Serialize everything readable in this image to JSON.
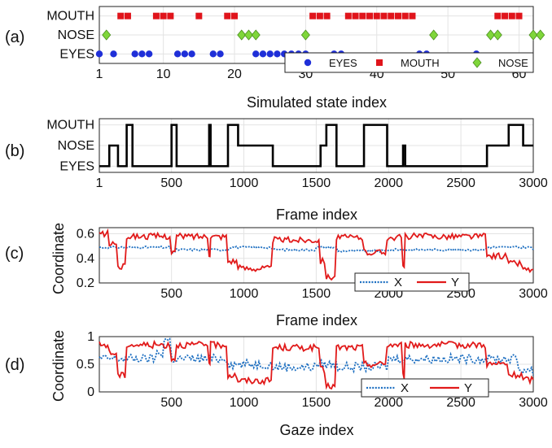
{
  "chart_data": [
    {
      "panel": "(a)",
      "type": "scatter",
      "xlabel": "Simulated state index",
      "xlim": [
        1,
        62
      ],
      "xticks": [
        1,
        10,
        20,
        30,
        40,
        50,
        60
      ],
      "ycategories": [
        "EYES",
        "NOSE",
        "MOUTH"
      ],
      "grid": true,
      "legend_position": "bottom-right",
      "series": [
        {
          "name": "EYES",
          "color": "#1f2fd8",
          "marker": "circle",
          "x": [
            1,
            3,
            6,
            7,
            8,
            12,
            13,
            14,
            17,
            18,
            23,
            24,
            25,
            26,
            27,
            28,
            29,
            30,
            34,
            35,
            46,
            47,
            54
          ]
        },
        {
          "name": "MOUTH",
          "color": "#e0141b",
          "marker": "square",
          "x": [
            4,
            5,
            9,
            10,
            11,
            15,
            19,
            20,
            31,
            32,
            33,
            36,
            37,
            38,
            39,
            40,
            41,
            42,
            43,
            44,
            45,
            57,
            58,
            59,
            60
          ]
        },
        {
          "name": "NOSE",
          "color": "#7fd63a",
          "marker": "diamond",
          "x": [
            2,
            21,
            22,
            23,
            30,
            48,
            56,
            57,
            62,
            63
          ]
        }
      ]
    },
    {
      "panel": "(b)",
      "type": "line",
      "xlabel": "Frame index",
      "xlim": [
        1,
        3000
      ],
      "xticks": [
        1,
        500,
        1000,
        1500,
        2000,
        2500,
        3000
      ],
      "ycategories": [
        "EYES",
        "NOSE",
        "MOUTH"
      ],
      "grid": true,
      "series": [
        {
          "name": "",
          "color": "#000000",
          "steps": [
            [
              1,
              0
            ],
            [
              70,
              1
            ],
            [
              130,
              0
            ],
            [
              190,
              2
            ],
            [
              230,
              0
            ],
            [
              500,
              2
            ],
            [
              535,
              0
            ],
            [
              760,
              2
            ],
            [
              770,
              0
            ],
            [
              890,
              2
            ],
            [
              960,
              1
            ],
            [
              1200,
              0
            ],
            [
              1530,
              1
            ],
            [
              1570,
              2
            ],
            [
              1640,
              0
            ],
            [
              1830,
              2
            ],
            [
              1990,
              0
            ],
            [
              2100,
              1
            ],
            [
              2115,
              0
            ],
            [
              2270,
              0
            ],
            [
              2680,
              1
            ],
            [
              2830,
              2
            ],
            [
              2930,
              1
            ],
            [
              3000,
              1
            ]
          ]
        }
      ]
    },
    {
      "panel": "(c)",
      "type": "line",
      "xlabel": "Frame index",
      "ylabel": "Coordinate",
      "xlim": [
        1,
        3000
      ],
      "ylim": [
        0.2,
        0.65
      ],
      "xticks": [
        500,
        1000,
        1500,
        2000,
        2500,
        3000
      ],
      "yticks": [
        0.2,
        0.4,
        0.6
      ],
      "grid": true,
      "legend_position": "bottom-right",
      "series": [
        {
          "name": "X",
          "color": "#1d6fc1",
          "style": "dotted",
          "segments": [
            [
              1,
              0.49
            ],
            [
              500,
              0.45
            ],
            [
              535,
              0.47
            ],
            [
              900,
              0.49
            ],
            [
              1200,
              0.47
            ],
            [
              1500,
              0.49
            ],
            [
              1650,
              0.46
            ],
            [
              2000,
              0.47
            ],
            [
              2680,
              0.49
            ],
            [
              3000,
              0.47
            ]
          ]
        },
        {
          "name": "Y",
          "color": "#e11a1a",
          "style": "solid",
          "segments": [
            [
              1,
              0.6
            ],
            [
              70,
              0.52
            ],
            [
              130,
              0.33
            ],
            [
              190,
              0.58
            ],
            [
              500,
              0.45
            ],
            [
              535,
              0.58
            ],
            [
              760,
              0.44
            ],
            [
              770,
              0.58
            ],
            [
              890,
              0.38
            ],
            [
              960,
              0.32
            ],
            [
              1200,
              0.55
            ],
            [
              1530,
              0.38
            ],
            [
              1570,
              0.25
            ],
            [
              1640,
              0.57
            ],
            [
              1830,
              0.45
            ],
            [
              1990,
              0.57
            ],
            [
              2100,
              0.33
            ],
            [
              2115,
              0.58
            ],
            [
              2680,
              0.42
            ],
            [
              2830,
              0.36
            ],
            [
              2930,
              0.31
            ],
            [
              3000,
              0.31
            ]
          ]
        }
      ]
    },
    {
      "panel": "(d)",
      "type": "line",
      "xlabel": "Gaze index",
      "ylabel": "Coordinate",
      "xlim": [
        1,
        3000
      ],
      "ylim": [
        0,
        1
      ],
      "xticks": [
        500,
        1000,
        1500,
        2000,
        2500,
        3000
      ],
      "yticks": [
        0,
        0.5,
        1
      ],
      "grid": true,
      "legend_position": "bottom-right",
      "series": [
        {
          "name": "X",
          "color": "#1d6fc1",
          "style": "dotted",
          "segments": [
            [
              1,
              0.6
            ],
            [
              400,
              0.7
            ],
            [
              450,
              0.95
            ],
            [
              500,
              0.6
            ],
            [
              900,
              0.5
            ],
            [
              1200,
              0.45
            ],
            [
              1500,
              0.5
            ],
            [
              1650,
              0.45
            ],
            [
              2000,
              0.6
            ],
            [
              2680,
              0.6
            ],
            [
              2900,
              0.4
            ],
            [
              3000,
              0.3
            ]
          ]
        },
        {
          "name": "Y",
          "color": "#e11a1a",
          "style": "solid",
          "segments": [
            [
              1,
              0.85
            ],
            [
              70,
              0.7
            ],
            [
              130,
              0.3
            ],
            [
              190,
              0.85
            ],
            [
              500,
              0.6
            ],
            [
              535,
              0.85
            ],
            [
              760,
              0.55
            ],
            [
              770,
              0.85
            ],
            [
              890,
              0.3
            ],
            [
              960,
              0.2
            ],
            [
              1200,
              0.8
            ],
            [
              1530,
              0.4
            ],
            [
              1570,
              0.1
            ],
            [
              1640,
              0.8
            ],
            [
              1830,
              0.5
            ],
            [
              1990,
              0.85
            ],
            [
              2100,
              0.3
            ],
            [
              2115,
              0.85
            ],
            [
              2680,
              0.5
            ],
            [
              2830,
              0.3
            ],
            [
              2930,
              0.22
            ],
            [
              3000,
              0.22
            ]
          ]
        }
      ]
    }
  ],
  "panels": {
    "a": {
      "label": "(a)",
      "xlabel": "Simulated state index",
      "legend": [
        "EYES",
        "MOUTH",
        "NOSE"
      ]
    },
    "b": {
      "label": "(b)",
      "xlabel": "Frame index"
    },
    "c": {
      "label": "(c)",
      "xlabel": "Frame index",
      "ylabel": "Coordinate",
      "legend": [
        "X",
        "Y"
      ]
    },
    "d": {
      "label": "(d)",
      "xlabel": "Gaze index",
      "ylabel": "Coordinate",
      "legend": [
        "X",
        "Y"
      ]
    }
  }
}
